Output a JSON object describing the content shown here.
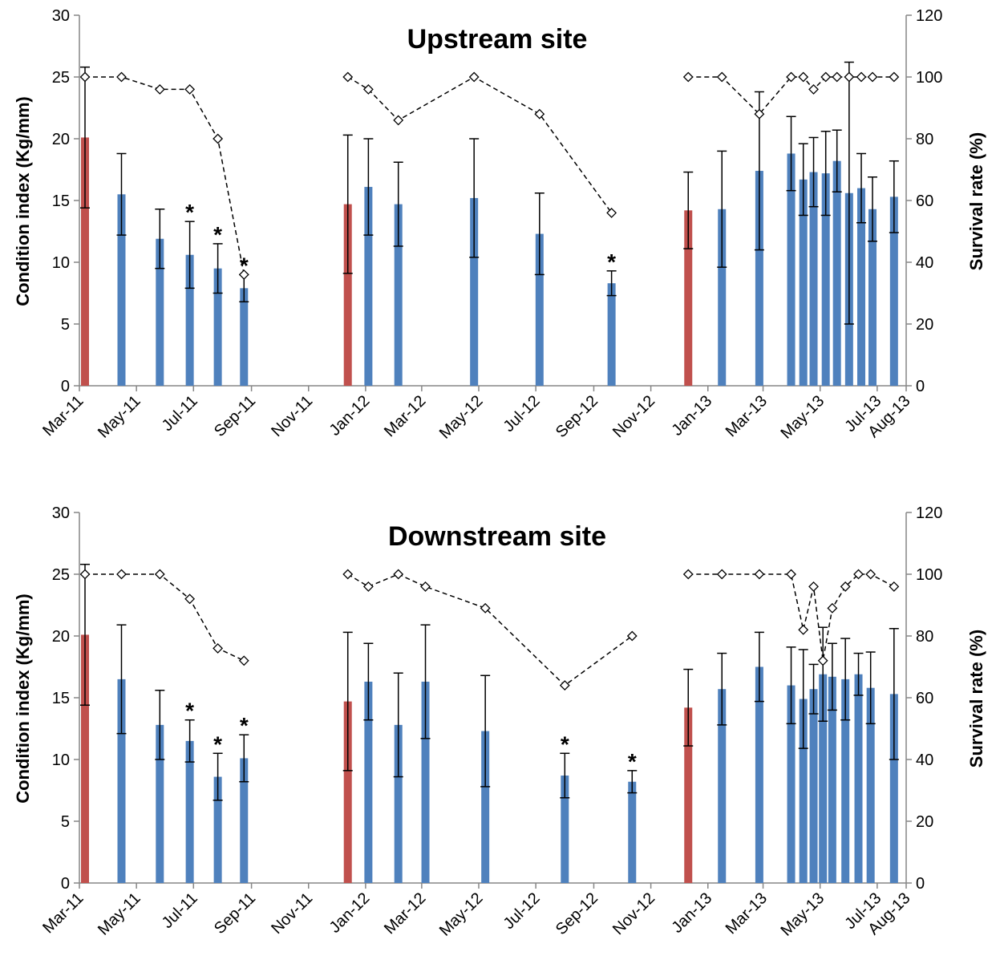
{
  "chart_data": [
    {
      "type": "bar",
      "title": "Upstream site",
      "ylabel": "Condition index (Kg/mm)",
      "y2label": "Survival rate (%)",
      "ylim": [
        0,
        30
      ],
      "y2lim": [
        0,
        120
      ],
      "yticks": [
        "0",
        "5",
        "10",
        "15",
        "20",
        "25",
        "30"
      ],
      "y2ticks": [
        "0",
        "20",
        "40",
        "60",
        "80",
        "100",
        "120"
      ],
      "xticks": [
        "Mar-11",
        "May-11",
        "Jul-11",
        "Sep-11",
        "Nov-11",
        "Jan-12",
        "Mar-12",
        "May-12",
        "Jul-12",
        "Sep-12",
        "Nov-12",
        "Jan-13",
        "Mar-13",
        "May-13",
        "Jul-13",
        "Aug-13"
      ],
      "colors": {
        "initial": "#C0504D",
        "sample": "#4F81BD"
      },
      "bars": [
        {
          "date": "2011-03-07",
          "value": 20.1,
          "err": 5.7,
          "kind": "initial",
          "sig": false
        },
        {
          "date": "2011-04-15",
          "value": 15.5,
          "err": 3.3,
          "kind": "sample",
          "sig": false
        },
        {
          "date": "2011-05-26",
          "value": 11.9,
          "err": 2.4,
          "kind": "sample",
          "sig": false
        },
        {
          "date": "2011-06-27",
          "value": 10.6,
          "err": 2.7,
          "kind": "sample",
          "sig": true
        },
        {
          "date": "2011-07-27",
          "value": 9.5,
          "err": 2.0,
          "kind": "sample",
          "sig": true
        },
        {
          "date": "2011-08-24",
          "value": 7.9,
          "err": 1.1,
          "kind": "sample",
          "sig": true
        },
        {
          "date": "2011-12-13",
          "value": 14.7,
          "err": 5.6,
          "kind": "initial",
          "sig": false
        },
        {
          "date": "2012-01-04",
          "value": 16.1,
          "err": 3.9,
          "kind": "sample",
          "sig": false
        },
        {
          "date": "2012-02-05",
          "value": 14.7,
          "err": 3.4,
          "kind": "sample",
          "sig": false
        },
        {
          "date": "2012-04-26",
          "value": 15.2,
          "err": 4.8,
          "kind": "sample",
          "sig": false
        },
        {
          "date": "2012-07-05",
          "value": 12.3,
          "err": 3.3,
          "kind": "sample",
          "sig": false
        },
        {
          "date": "2012-09-20",
          "value": 8.3,
          "err": 1.0,
          "kind": "sample",
          "sig": true
        },
        {
          "date": "2012-12-11",
          "value": 14.2,
          "err": 3.1,
          "kind": "initial",
          "sig": false
        },
        {
          "date": "2013-01-16",
          "value": 14.3,
          "err": 4.7,
          "kind": "sample",
          "sig": false
        },
        {
          "date": "2013-02-25",
          "value": 17.4,
          "err": 6.4,
          "kind": "sample",
          "sig": false
        },
        {
          "date": "2013-03-31",
          "value": 18.8,
          "err": 3.0,
          "kind": "sample",
          "sig": false
        },
        {
          "date": "2013-04-13",
          "value": 16.7,
          "err": 2.9,
          "kind": "sample",
          "sig": false
        },
        {
          "date": "2013-04-24",
          "value": 17.3,
          "err": 2.8,
          "kind": "sample",
          "sig": false
        },
        {
          "date": "2013-05-07",
          "value": 17.2,
          "err": 3.4,
          "kind": "sample",
          "sig": false
        },
        {
          "date": "2013-05-19",
          "value": 18.2,
          "err": 2.5,
          "kind": "sample",
          "sig": false
        },
        {
          "date": "2013-06-01",
          "value": 15.6,
          "err": 10.6,
          "kind": "sample",
          "sig": false
        },
        {
          "date": "2013-06-14",
          "value": 16.0,
          "err": 2.8,
          "kind": "sample",
          "sig": false
        },
        {
          "date": "2013-06-26",
          "value": 14.3,
          "err": 2.6,
          "kind": "sample",
          "sig": false
        },
        {
          "date": "2013-07-19",
          "value": 15.3,
          "err": 2.9,
          "kind": "sample",
          "sig": false
        }
      ],
      "survival": [
        [
          [
            "2011-03-07",
            100
          ],
          [
            "2011-04-15",
            100
          ],
          [
            "2011-05-26",
            96
          ],
          [
            "2011-06-27",
            96
          ],
          [
            "2011-07-27",
            80
          ],
          [
            "2011-08-24",
            36
          ]
        ],
        [
          [
            "2011-12-13",
            100
          ],
          [
            "2012-01-04",
            96
          ],
          [
            "2012-02-05",
            86
          ],
          [
            "2012-04-26",
            100
          ],
          [
            "2012-07-05",
            88
          ],
          [
            "2012-09-20",
            56
          ]
        ],
        [
          [
            "2012-12-11",
            100
          ],
          [
            "2013-01-16",
            100
          ],
          [
            "2013-02-25",
            88
          ],
          [
            "2013-03-31",
            100
          ],
          [
            "2013-04-13",
            100
          ],
          [
            "2013-04-24",
            96
          ],
          [
            "2013-05-07",
            100
          ],
          [
            "2013-05-19",
            100
          ],
          [
            "2013-06-01",
            100
          ],
          [
            "2013-06-14",
            100
          ],
          [
            "2013-06-26",
            100
          ],
          [
            "2013-07-19",
            100
          ]
        ]
      ],
      "star_symbol": "*"
    },
    {
      "type": "bar",
      "title": "Downstream site",
      "ylabel": "Condition index (Kg/mm)",
      "y2label": "Survival rate (%)",
      "ylim": [
        0,
        30
      ],
      "y2lim": [
        0,
        120
      ],
      "yticks": [
        "0",
        "5",
        "10",
        "15",
        "20",
        "25",
        "30"
      ],
      "y2ticks": [
        "0",
        "20",
        "40",
        "60",
        "80",
        "100",
        "120"
      ],
      "xticks": [
        "Mar-11",
        "May-11",
        "Jul-11",
        "Sep-11",
        "Nov-11",
        "Jan-12",
        "Mar-12",
        "May-12",
        "Jul-12",
        "Sep-12",
        "Nov-12",
        "Jan-13",
        "Mar-13",
        "May-13",
        "Jul-13",
        "Aug-13"
      ],
      "colors": {
        "initial": "#C0504D",
        "sample": "#4F81BD"
      },
      "bars": [
        {
          "date": "2011-03-07",
          "value": 20.1,
          "err": 5.7,
          "kind": "initial",
          "sig": false
        },
        {
          "date": "2011-04-15",
          "value": 16.5,
          "err": 4.4,
          "kind": "sample",
          "sig": false
        },
        {
          "date": "2011-05-26",
          "value": 12.8,
          "err": 2.8,
          "kind": "sample",
          "sig": false
        },
        {
          "date": "2011-06-27",
          "value": 11.5,
          "err": 1.7,
          "kind": "sample",
          "sig": true
        },
        {
          "date": "2011-07-27",
          "value": 8.6,
          "err": 1.9,
          "kind": "sample",
          "sig": true
        },
        {
          "date": "2011-08-24",
          "value": 10.1,
          "err": 1.9,
          "kind": "sample",
          "sig": true
        },
        {
          "date": "2011-12-13",
          "value": 14.7,
          "err": 5.6,
          "kind": "initial",
          "sig": false
        },
        {
          "date": "2012-01-04",
          "value": 16.3,
          "err": 3.1,
          "kind": "sample",
          "sig": false
        },
        {
          "date": "2012-02-05",
          "value": 12.8,
          "err": 4.2,
          "kind": "sample",
          "sig": false
        },
        {
          "date": "2012-03-05",
          "value": 16.3,
          "err": 4.6,
          "kind": "sample",
          "sig": false
        },
        {
          "date": "2012-05-08",
          "value": 12.3,
          "err": 4.5,
          "kind": "sample",
          "sig": false
        },
        {
          "date": "2012-08-01",
          "value": 8.7,
          "err": 1.8,
          "kind": "sample",
          "sig": true
        },
        {
          "date": "2012-10-12",
          "value": 8.2,
          "err": 0.9,
          "kind": "sample",
          "sig": true
        },
        {
          "date": "2012-12-11",
          "value": 14.2,
          "err": 3.1,
          "kind": "initial",
          "sig": false
        },
        {
          "date": "2013-01-16",
          "value": 15.7,
          "err": 2.9,
          "kind": "sample",
          "sig": false
        },
        {
          "date": "2013-02-25",
          "value": 17.5,
          "err": 2.8,
          "kind": "sample",
          "sig": false
        },
        {
          "date": "2013-03-31",
          "value": 16.0,
          "err": 3.1,
          "kind": "sample",
          "sig": false
        },
        {
          "date": "2013-04-13",
          "value": 14.9,
          "err": 4.0,
          "kind": "sample",
          "sig": false
        },
        {
          "date": "2013-04-24",
          "value": 15.7,
          "err": 2.0,
          "kind": "sample",
          "sig": false
        },
        {
          "date": "2013-05-04",
          "value": 16.9,
          "err": 3.8,
          "kind": "sample",
          "sig": false
        },
        {
          "date": "2013-05-14",
          "value": 16.7,
          "err": 2.7,
          "kind": "sample",
          "sig": false
        },
        {
          "date": "2013-05-28",
          "value": 16.5,
          "err": 3.3,
          "kind": "sample",
          "sig": false
        },
        {
          "date": "2013-06-11",
          "value": 16.9,
          "err": 1.7,
          "kind": "sample",
          "sig": false
        },
        {
          "date": "2013-06-24",
          "value": 15.8,
          "err": 2.9,
          "kind": "sample",
          "sig": false
        },
        {
          "date": "2013-07-19",
          "value": 15.3,
          "err": 5.3,
          "kind": "sample",
          "sig": false
        }
      ],
      "survival": [
        [
          [
            "2011-03-07",
            100
          ],
          [
            "2011-04-15",
            100
          ],
          [
            "2011-05-26",
            100
          ],
          [
            "2011-06-27",
            92
          ],
          [
            "2011-07-27",
            76
          ],
          [
            "2011-08-24",
            72
          ]
        ],
        [
          [
            "2011-12-13",
            100
          ],
          [
            "2012-01-04",
            96
          ],
          [
            "2012-02-05",
            100
          ],
          [
            "2012-03-05",
            96
          ],
          [
            "2012-05-08",
            89
          ],
          [
            "2012-08-01",
            64
          ],
          [
            "2012-10-12",
            80
          ]
        ],
        [
          [
            "2012-12-11",
            100
          ],
          [
            "2013-01-16",
            100
          ],
          [
            "2013-02-25",
            100
          ],
          [
            "2013-03-31",
            100
          ],
          [
            "2013-04-13",
            82
          ],
          [
            "2013-04-24",
            96
          ],
          [
            "2013-05-04",
            72
          ],
          [
            "2013-05-14",
            89
          ],
          [
            "2013-05-28",
            96
          ],
          [
            "2013-06-11",
            100
          ],
          [
            "2013-06-24",
            100
          ],
          [
            "2013-07-19",
            96
          ]
        ]
      ],
      "star_symbol": "*"
    }
  ]
}
